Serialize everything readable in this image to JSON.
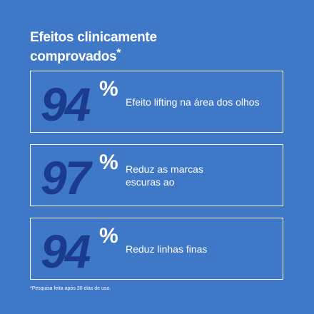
{
  "title": {
    "lines": [
      "Efeitos clinicamente",
      "comprovados"
    ],
    "mark": "*"
  },
  "items": [
    {
      "number": 94,
      "unit": "%",
      "lines": [
        "Efeito lifting na área dos olhos"
      ]
    },
    {
      "number": 97,
      "unit": "%",
      "lines": [
        "Reduz as marcas",
        "escuras ao"
      ]
    },
    {
      "number": 94,
      "unit": "%",
      "lines": [
        "Reduz linhas finas"
      ]
    }
  ],
  "footnote": "*Pesquisa feita após 30 dias de uso."
}
